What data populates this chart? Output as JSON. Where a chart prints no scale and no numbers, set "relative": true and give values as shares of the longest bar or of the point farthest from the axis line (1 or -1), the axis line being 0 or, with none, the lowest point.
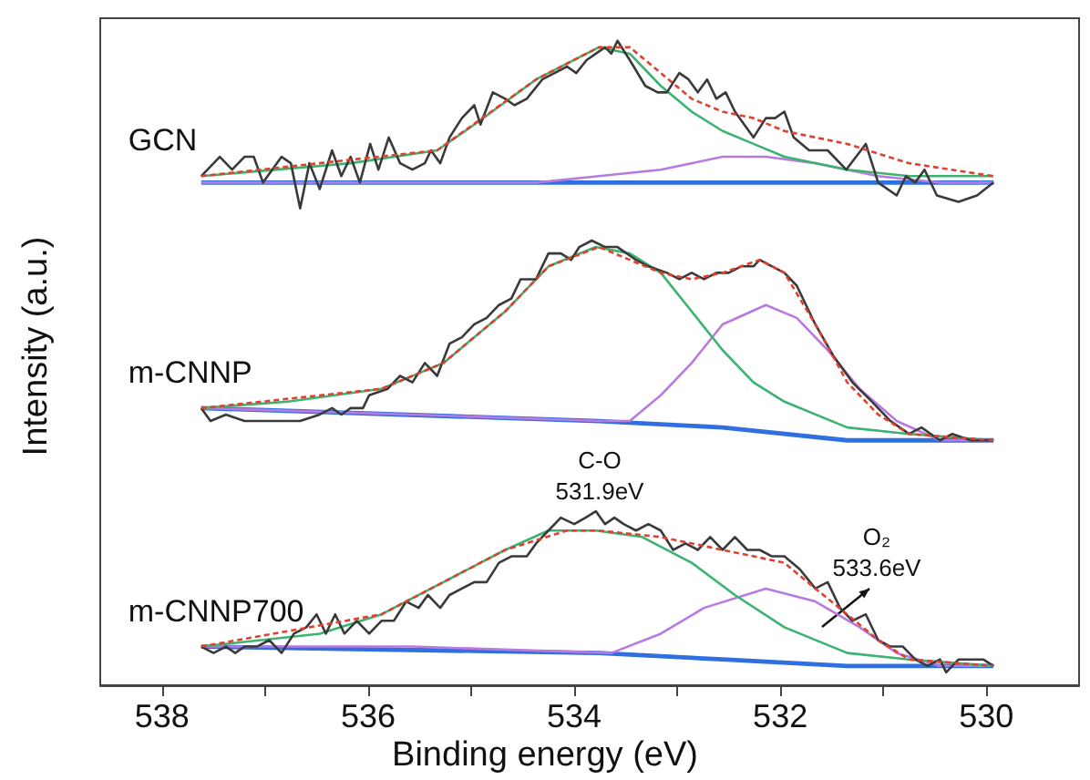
{
  "chart_data": {
    "type": "line",
    "relative": true,
    "xlabel": "Binding energy (eV)",
    "ylabel": "Intensity (a.u.)",
    "xlim": [
      538.6,
      529.1
    ],
    "xticks": [
      538,
      {
        "value": 537,
        "label": null
      },
      536,
      {
        "value": 535,
        "label": null
      },
      534,
      {
        "value": 533,
        "label": null
      },
      532,
      {
        "value": 531,
        "label": null
      },
      530
    ],
    "marker": "none",
    "grid": false,
    "annotations": [
      "C-O\n531.9eV",
      "O₂\n533.6eV"
    ],
    "series": [
      {
        "name": "GCN",
        "color": "#3a3a3a",
        "x": [
          537.62,
          537.44,
          537.32,
          537.2,
          537.11,
          537.02,
          536.84,
          536.75,
          536.66,
          536.57,
          536.47,
          536.35,
          536.26,
          536.17,
          536.08,
          535.98,
          535.9,
          535.8,
          535.69,
          535.57,
          535.45,
          535.39,
          535.3,
          535.21,
          535.09,
          534.97,
          534.91,
          534.79,
          534.67,
          534.58,
          534.46,
          534.31,
          534.19,
          534.07,
          533.98,
          533.88,
          533.79,
          533.7,
          533.64,
          533.58,
          533.46,
          533.31,
          533.19,
          533.1,
          532.98,
          532.89,
          532.8,
          532.71,
          532.62,
          532.53,
          532.44,
          532.26,
          532.14,
          532.05,
          531.96,
          531.87,
          531.72,
          531.54,
          531.36,
          531.17,
          531.05,
          530.87,
          530.78,
          530.69,
          530.6,
          530.48,
          530.27,
          530.09,
          529.93
        ],
        "values": [
          0.79,
          0.82,
          0.8,
          0.82,
          0.82,
          0.78,
          0.82,
          0.81,
          0.74,
          0.81,
          0.77,
          0.83,
          0.79,
          0.82,
          0.78,
          0.84,
          0.8,
          0.85,
          0.81,
          0.8,
          0.81,
          0.83,
          0.81,
          0.85,
          0.88,
          0.9,
          0.87,
          0.92,
          0.91,
          0.9,
          0.91,
          0.94,
          0.95,
          0.96,
          0.95,
          0.97,
          0.98,
          0.99,
          0.98,
          1,
          0.97,
          0.93,
          0.92,
          0.92,
          0.95,
          0.94,
          0.92,
          0.94,
          0.91,
          0.92,
          0.89,
          0.85,
          0.88,
          0.88,
          0.89,
          0.85,
          0.83,
          0.83,
          0.8,
          0.84,
          0.78,
          0.76,
          0.79,
          0.78,
          0.8,
          0.76,
          0.75,
          0.76,
          0.78
        ]
      },
      {
        "color": "#2f6fe0",
        "x": [
          537.62,
          529.93
        ],
        "values": [
          0.78,
          0.78
        ]
      },
      {
        "color": "#b77be0",
        "x": [
          537.62,
          535.57,
          534.37,
          533.76,
          533.16,
          532.56,
          532.14,
          531.66,
          531.05,
          530.45,
          529.93
        ],
        "values": [
          0.78,
          0.78,
          0.78,
          0.79,
          0.8,
          0.82,
          0.82,
          0.81,
          0.79,
          0.78,
          0.78
        ]
      },
      {
        "color": "#3cb370",
        "x": [
          537.62,
          536.17,
          535.33,
          534.97,
          534.37,
          533.76,
          533.46,
          533.16,
          532.86,
          532.56,
          532.26,
          531.96,
          531.35,
          530.75,
          529.93
        ],
        "values": [
          0.79,
          0.81,
          0.83,
          0.87,
          0.94,
          0.99,
          0.98,
          0.93,
          0.89,
          0.86,
          0.84,
          0.82,
          0.8,
          0.79,
          0.79
        ]
      },
      {
        "color": "#e0412f",
        "line_style": "dashed",
        "x": [
          537.62,
          535.33,
          534.37,
          533.76,
          533.46,
          533.16,
          532.86,
          532.56,
          532.26,
          531.96,
          531.35,
          530.75,
          529.93
        ],
        "values": [
          0.79,
          0.83,
          0.94,
          0.99,
          0.99,
          0.95,
          0.91,
          0.89,
          0.88,
          0.86,
          0.84,
          0.81,
          0.79
        ]
      },
      {
        "name": "m-CNNP",
        "color": "#3a3a3a",
        "x": [
          537.62,
          537.53,
          537.38,
          537.2,
          537.08,
          536.93,
          536.78,
          536.66,
          536.47,
          536.35,
          536.26,
          536.17,
          536.05,
          535.99,
          535.81,
          535.69,
          535.57,
          535.45,
          535.33,
          535.21,
          535.09,
          534.97,
          534.85,
          534.73,
          534.61,
          534.52,
          534.37,
          534.25,
          534.13,
          534.03,
          533.95,
          533.83,
          533.7,
          533.58,
          533.4,
          533.28,
          533.1,
          532.98,
          532.86,
          532.74,
          532.62,
          532.5,
          532.38,
          532.26,
          532.2,
          532.08,
          531.96,
          531.84,
          531.66,
          531.48,
          531.3,
          531.11,
          530.93,
          530.75,
          530.63,
          530.45,
          530.33,
          530.15,
          530.03,
          529.93
        ],
        "values": [
          0.43,
          0.41,
          0.42,
          0.41,
          0.41,
          0.41,
          0.41,
          0.41,
          0.42,
          0.43,
          0.42,
          0.43,
          0.43,
          0.45,
          0.46,
          0.48,
          0.47,
          0.5,
          0.48,
          0.53,
          0.54,
          0.56,
          0.57,
          0.59,
          0.6,
          0.63,
          0.63,
          0.67,
          0.67,
          0.66,
          0.68,
          0.69,
          0.68,
          0.68,
          0.66,
          0.65,
          0.64,
          0.63,
          0.64,
          0.63,
          0.64,
          0.64,
          0.65,
          0.65,
          0.66,
          0.65,
          0.64,
          0.62,
          0.56,
          0.51,
          0.47,
          0.44,
          0.41,
          0.39,
          0.4,
          0.38,
          0.39,
          0.38,
          0.38,
          0.38
        ]
      },
      {
        "color": "#2f6fe0",
        "x": [
          537.62,
          533.76,
          532.56,
          531.35,
          529.93
        ],
        "values": [
          0.43,
          0.41,
          0.4,
          0.38,
          0.38
        ]
      },
      {
        "color": "#b77be0",
        "x": [
          537.62,
          535.57,
          533.76,
          533.46,
          533.16,
          532.86,
          532.56,
          532.14,
          531.84,
          531.54,
          531.23,
          530.87,
          530.45,
          529.93
        ],
        "values": [
          0.43,
          0.42,
          0.41,
          0.41,
          0.45,
          0.5,
          0.56,
          0.59,
          0.57,
          0.52,
          0.46,
          0.41,
          0.38,
          0.38
        ]
      },
      {
        "color": "#3cb370",
        "x": [
          537.62,
          536.78,
          535.87,
          535.27,
          534.67,
          534.25,
          533.79,
          533.46,
          533.16,
          532.86,
          532.56,
          532.26,
          531.96,
          531.35,
          530.75,
          529.93
        ],
        "values": [
          0.43,
          0.44,
          0.46,
          0.5,
          0.58,
          0.65,
          0.68,
          0.67,
          0.64,
          0.58,
          0.52,
          0.47,
          0.44,
          0.4,
          0.39,
          0.38
        ]
      },
      {
        "color": "#e0412f",
        "line_style": "dashed",
        "x": [
          537.62,
          535.87,
          535.27,
          534.67,
          534.25,
          533.76,
          533.16,
          532.86,
          532.56,
          532.2,
          531.96,
          531.66,
          531.35,
          531.05,
          530.75,
          529.93
        ],
        "values": [
          0.43,
          0.46,
          0.5,
          0.58,
          0.65,
          0.68,
          0.64,
          0.63,
          0.64,
          0.66,
          0.64,
          0.56,
          0.47,
          0.42,
          0.39,
          0.38
        ]
      },
      {
        "name": "m-CNNP700",
        "color": "#3a3a3a",
        "x": [
          537.62,
          537.5,
          537.38,
          537.29,
          537.2,
          537.08,
          536.96,
          536.84,
          536.72,
          536.6,
          536.5,
          536.41,
          536.32,
          536.23,
          536.11,
          535.99,
          535.87,
          535.75,
          535.63,
          535.51,
          535.42,
          535.3,
          535.21,
          535.09,
          534.97,
          534.85,
          534.73,
          534.61,
          534.46,
          534.37,
          534.25,
          534.13,
          534.0,
          533.89,
          533.79,
          533.7,
          533.61,
          533.52,
          533.4,
          533.28,
          533.16,
          533.04,
          532.92,
          532.8,
          532.68,
          532.56,
          532.44,
          532.32,
          532.2,
          532.08,
          531.96,
          531.81,
          531.66,
          531.54,
          531.42,
          531.3,
          531.17,
          531.05,
          530.93,
          530.81,
          530.69,
          530.57,
          530.45,
          530.39,
          530.27,
          530.15,
          530.03,
          529.93
        ],
        "values": [
          0.06,
          0.05,
          0.06,
          0.05,
          0.06,
          0.06,
          0.07,
          0.05,
          0.08,
          0.09,
          0.11,
          0.08,
          0.11,
          0.08,
          0.1,
          0.08,
          0.1,
          0.1,
          0.13,
          0.12,
          0.14,
          0.12,
          0.14,
          0.15,
          0.16,
          0.16,
          0.19,
          0.2,
          0.2,
          0.22,
          0.24,
          0.26,
          0.25,
          0.26,
          0.27,
          0.25,
          0.26,
          0.25,
          0.24,
          0.25,
          0.24,
          0.21,
          0.22,
          0.21,
          0.23,
          0.21,
          0.23,
          0.21,
          0.21,
          0.2,
          0.2,
          0.18,
          0.15,
          0.16,
          0.12,
          0.1,
          0.11,
          0.07,
          0.06,
          0.06,
          0.04,
          0.03,
          0.04,
          0.02,
          0.04,
          0.04,
          0.04,
          0.03
        ]
      },
      {
        "color": "#2f6fe0",
        "x": [
          537.62,
          533.76,
          532.56,
          531.35,
          529.93
        ],
        "values": [
          0.06,
          0.05,
          0.04,
          0.03,
          0.03
        ]
      },
      {
        "color": "#b77be0",
        "x": [
          537.62,
          535.57,
          533.64,
          533.16,
          532.74,
          532.14,
          531.66,
          531.23,
          530.87,
          530.45,
          529.93
        ],
        "values": [
          0.06,
          0.06,
          0.05,
          0.08,
          0.12,
          0.15,
          0.13,
          0.09,
          0.05,
          0.03,
          0.03
        ]
      },
      {
        "color": "#3cb370",
        "x": [
          537.62,
          536.47,
          535.87,
          535.27,
          534.67,
          534.25,
          533.79,
          533.34,
          532.86,
          532.44,
          531.96,
          531.35,
          530.75,
          529.93
        ],
        "values": [
          0.06,
          0.08,
          0.11,
          0.16,
          0.21,
          0.24,
          0.24,
          0.23,
          0.19,
          0.14,
          0.09,
          0.05,
          0.04,
          0.03
        ]
      },
      {
        "color": "#e0412f",
        "line_style": "dashed",
        "x": [
          537.62,
          535.87,
          534.67,
          534.07,
          533.76,
          533.16,
          532.56,
          531.96,
          531.66,
          531.35,
          531.05,
          530.75,
          529.93
        ],
        "values": [
          0.06,
          0.11,
          0.21,
          0.24,
          0.24,
          0.23,
          0.21,
          0.19,
          0.15,
          0.11,
          0.07,
          0.04,
          0.03
        ]
      }
    ]
  }
}
